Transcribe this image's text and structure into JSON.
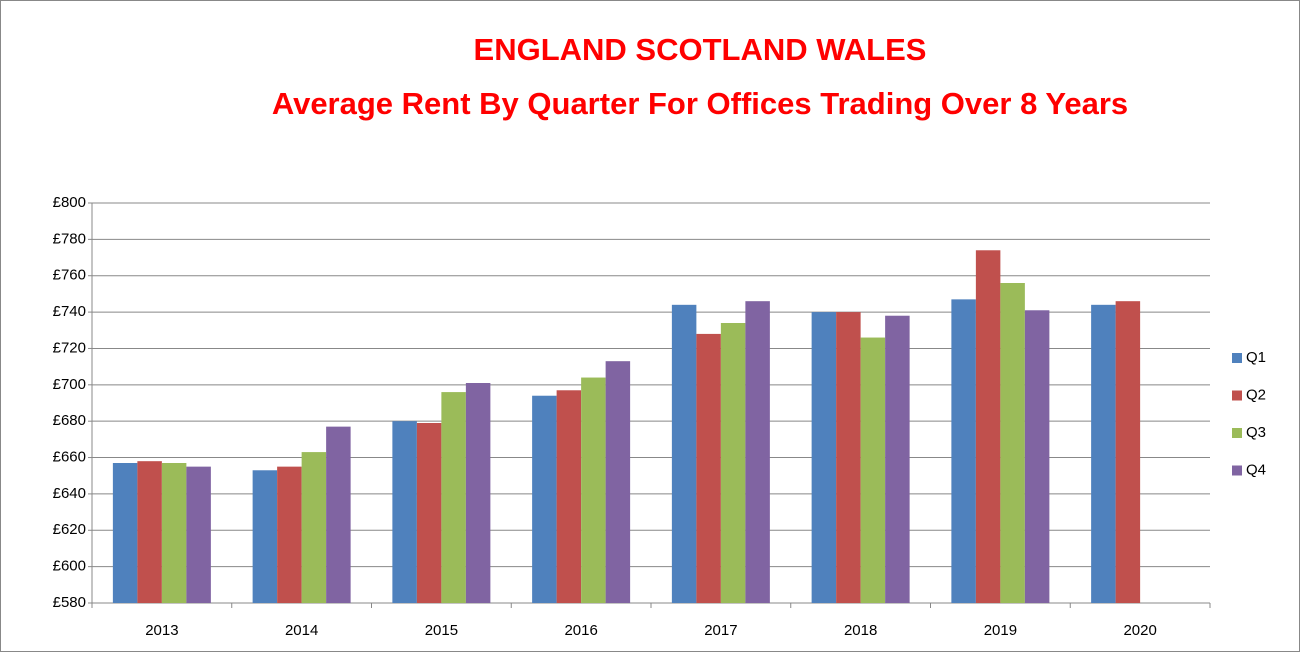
{
  "chart_data": {
    "type": "bar",
    "title": "ENGLAND SCOTLAND WALES",
    "subtitle": "Average Rent By Quarter For Offices Trading Over 8 Years",
    "categories": [
      "2013",
      "2014",
      "2015",
      "2016",
      "2017",
      "2018",
      "2019",
      "2020"
    ],
    "series": [
      {
        "name": "Q1",
        "color": "#4f81bd",
        "values": [
          657,
          653,
          680,
          694,
          744,
          740,
          747,
          744
        ]
      },
      {
        "name": "Q2",
        "color": "#c0504d",
        "values": [
          658,
          655,
          679,
          697,
          728,
          740,
          774,
          746
        ]
      },
      {
        "name": "Q3",
        "color": "#9bbb59",
        "values": [
          657,
          663,
          696,
          704,
          734,
          726,
          756,
          null
        ]
      },
      {
        "name": "Q4",
        "color": "#8064a2",
        "values": [
          655,
          677,
          701,
          713,
          746,
          738,
          741,
          null
        ]
      }
    ],
    "ylim": [
      580,
      800
    ],
    "yticks": [
      {
        "value": 580,
        "label": "£580"
      },
      {
        "value": 600,
        "label": "£600"
      },
      {
        "value": 620,
        "label": "£620"
      },
      {
        "value": 640,
        "label": "£640"
      },
      {
        "value": 660,
        "label": "£660"
      },
      {
        "value": 680,
        "label": "£680"
      },
      {
        "value": 700,
        "label": "£700"
      },
      {
        "value": 720,
        "label": "£720"
      },
      {
        "value": 740,
        "label": "£740"
      },
      {
        "value": 760,
        "label": "£760"
      },
      {
        "value": 780,
        "label": "£780"
      },
      {
        "value": 800,
        "label": "£800"
      }
    ],
    "grid": true,
    "legend": "right"
  }
}
